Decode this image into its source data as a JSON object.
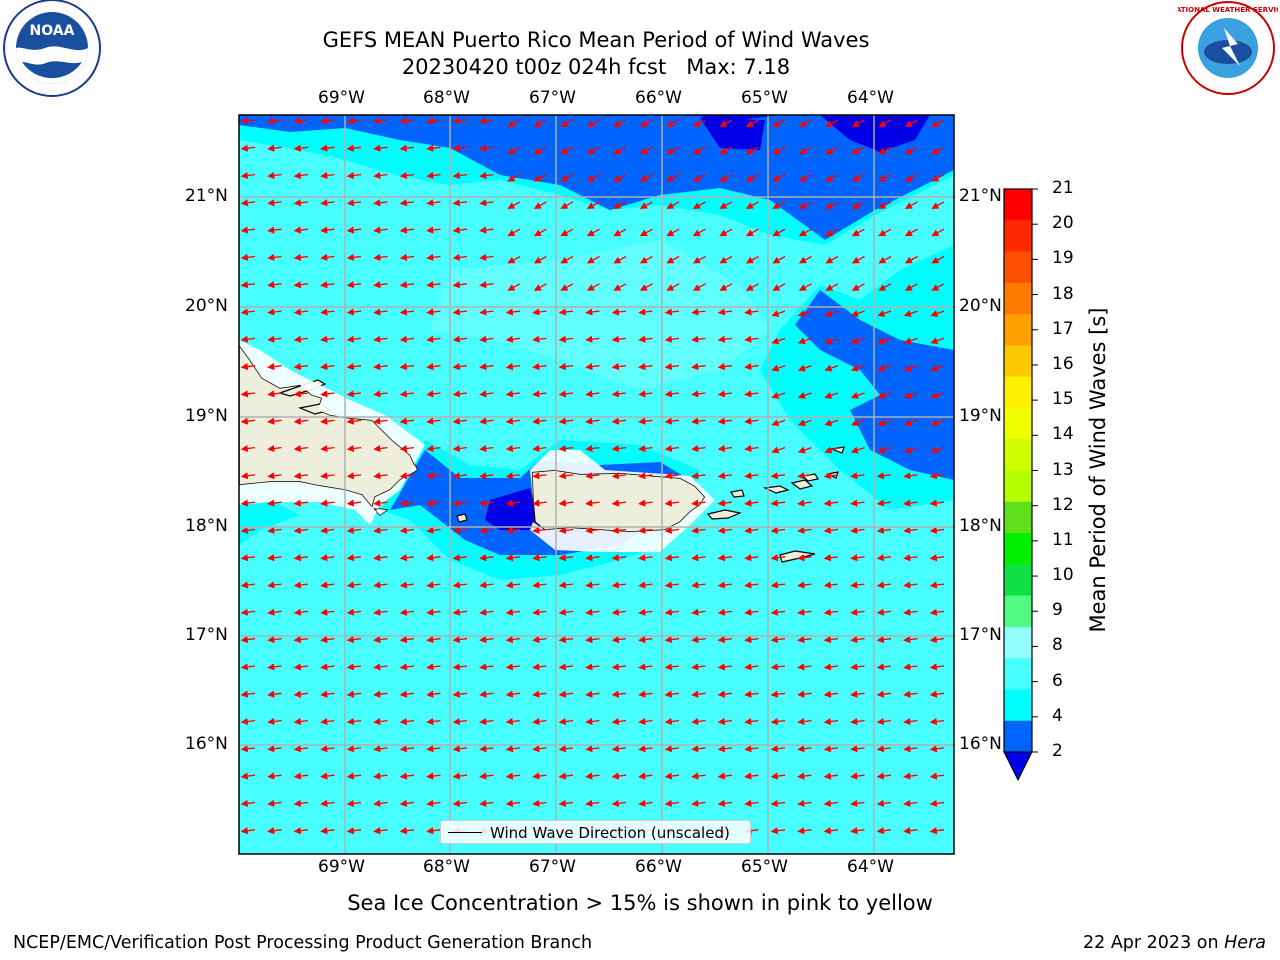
{
  "title_line1": "GEFS MEAN Puerto Rico Mean Period of Wind Waves",
  "title_line2": "20230420 t00z 024h fcst   Max: 7.18",
  "map": {
    "lon_ticks": [
      "69°W",
      "68°W",
      "67°W",
      "66°W",
      "65°W",
      "64°W"
    ],
    "lat_ticks": [
      "21°N",
      "20°N",
      "19°N",
      "18°N",
      "17°N",
      "16°N"
    ],
    "ocean_color": "#49fefe",
    "land_color": "#eeeedd",
    "arrow_color": "#ff0000",
    "grid": true
  },
  "legend": {
    "label": "Wind Wave Direction (unscaled)"
  },
  "colorbar": {
    "label": "Mean Period of Wind Waves [s]",
    "ticks": [
      "21",
      "20",
      "19",
      "18",
      "17",
      "16",
      "15",
      "14",
      "13",
      "12",
      "11",
      "10",
      "9",
      "8",
      "6",
      "4",
      "2"
    ],
    "colors": [
      "#fe0000",
      "#fe2800",
      "#fe5000",
      "#fe7a00",
      "#fea000",
      "#fec800",
      "#fef000",
      "#f0fe00",
      "#d0fe00",
      "#b4fe00",
      "#60e01a",
      "#00f000",
      "#0ee046",
      "#50fa80",
      "#92fefe",
      "#49fefe",
      "#00fefe",
      "#0064fe"
    ],
    "extend_color": "#0000e6"
  },
  "note": "Sea Ice Concentration > 15% is shown in pink to yellow",
  "footer_left": "NCEP/EMC/Verification Post Processing Product Generation Branch",
  "footer_right_prefix": "22 Apr 2023 on ",
  "footer_right_host": "Hera",
  "logos": {
    "noaa_text": "NOAA",
    "nws_text": "NATIONAL WEATHER SERVICE"
  }
}
